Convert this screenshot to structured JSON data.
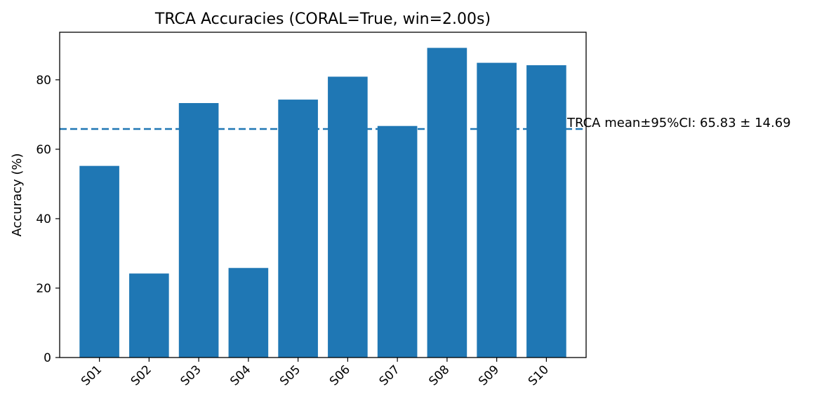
{
  "chart_data": {
    "type": "bar",
    "title": "TRCA Accuracies (CORAL=True, win=2.00s)",
    "xlabel": "",
    "ylabel": "Accuracy (%)",
    "categories": [
      "S01",
      "S02",
      "S03",
      "S04",
      "S05",
      "S06",
      "S07",
      "S08",
      "S09",
      "S10"
    ],
    "values": [
      55.2,
      24.2,
      73.3,
      25.8,
      74.3,
      80.9,
      66.7,
      89.2,
      84.9,
      84.2
    ],
    "ylim": [
      0,
      93.7
    ],
    "yticks": [
      0,
      20,
      40,
      60,
      80
    ],
    "ytick_labels": [
      "0",
      "20",
      "40",
      "60",
      "80"
    ],
    "bar_color": "#1f77b4",
    "mean_line": {
      "value": 65.83,
      "style": "dashed",
      "color": "#1f77b4",
      "label": "TRCA mean±95%CI: 65.83 ± 14.69"
    },
    "grid": false,
    "legend": "none"
  }
}
